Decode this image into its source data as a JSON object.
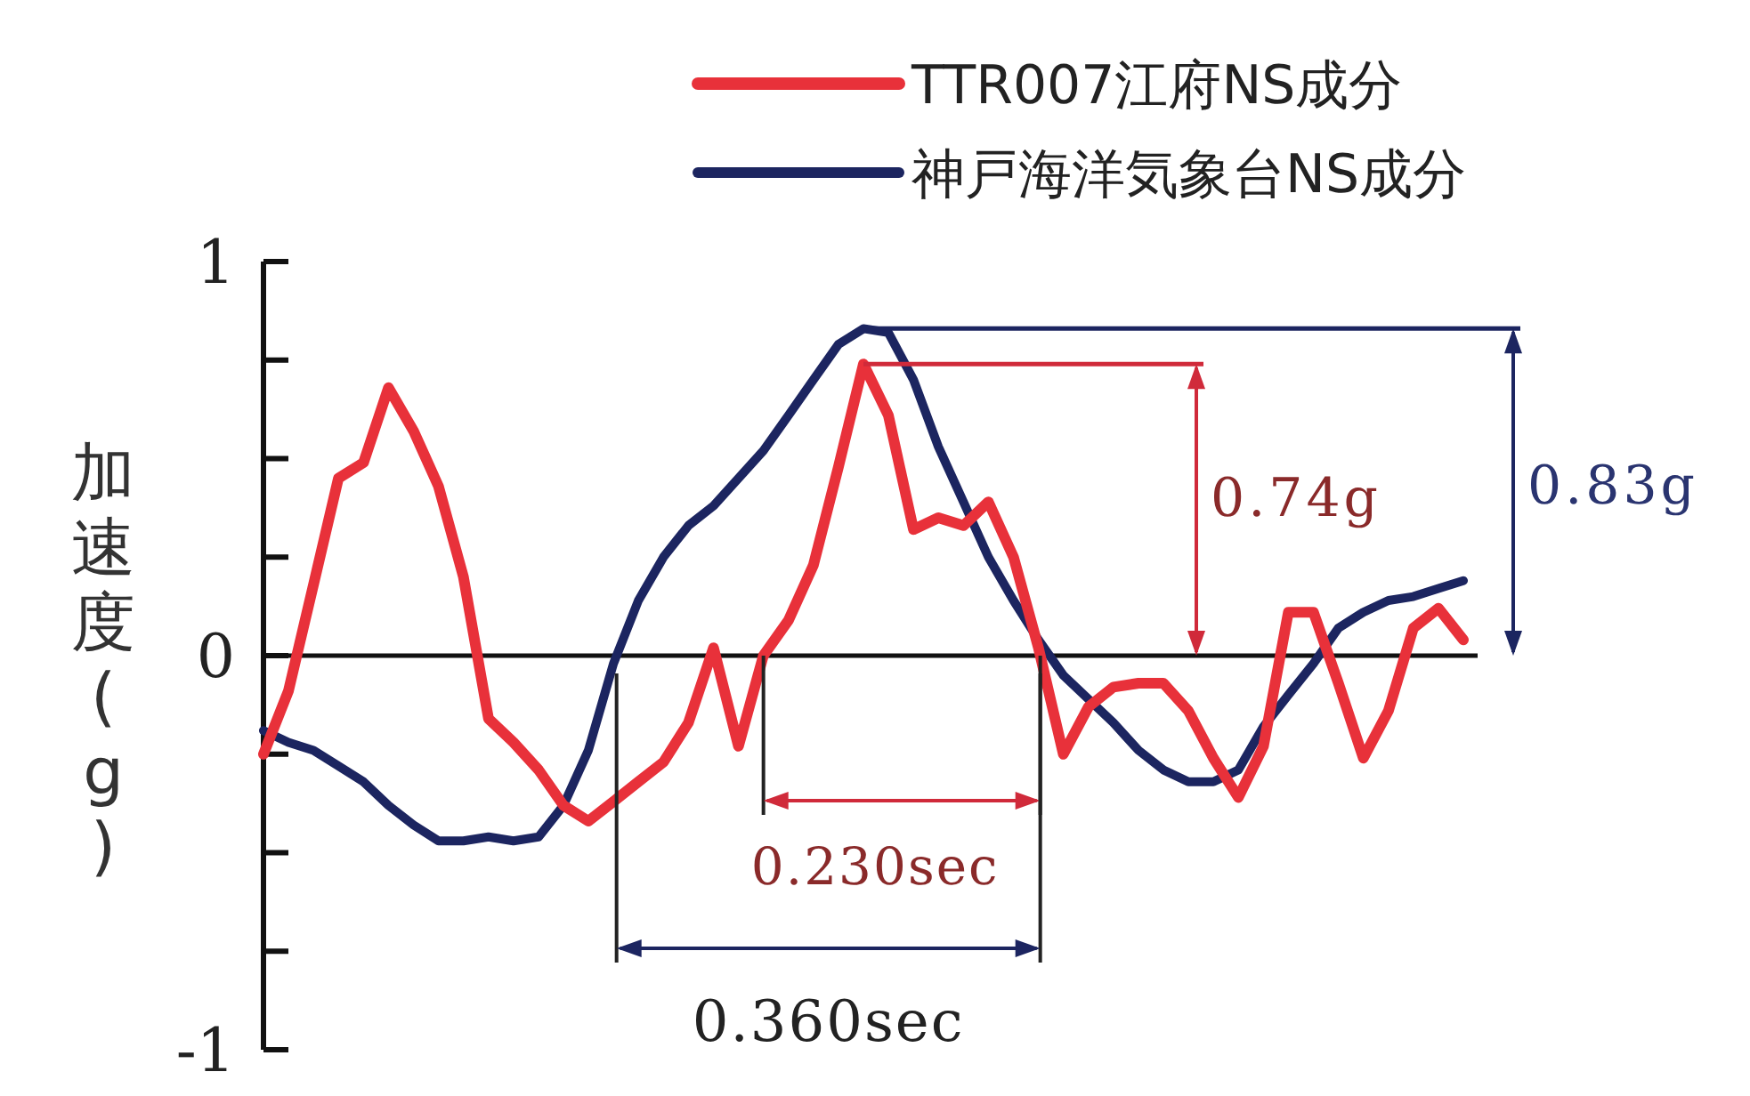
{
  "chart_data": {
    "type": "line",
    "ylabel": "加速度(g)",
    "legend": "top right",
    "marker": "none",
    "line_style": "solid",
    "ylim": [
      -1,
      1
    ],
    "yticks": [
      -1,
      {
        "value": -0.75,
        "label": null
      },
      {
        "value": -0.5,
        "label": null
      },
      {
        "value": -0.25,
        "label": null
      },
      0,
      {
        "value": 0.25,
        "label": null
      },
      {
        "value": 0.5,
        "label": null
      },
      {
        "value": 0.75,
        "label": null
      },
      1
    ],
    "categories": [
      null,
      null,
      null,
      null,
      null,
      null,
      null,
      null,
      null,
      null,
      null,
      null,
      null,
      null,
      null,
      null,
      null,
      null,
      null,
      null,
      null,
      null,
      null,
      null,
      null,
      null,
      null,
      null,
      null,
      null,
      null,
      null,
      null,
      null,
      null,
      null,
      null,
      null,
      null,
      null,
      null,
      null,
      null,
      null,
      null,
      null,
      null,
      null,
      null
    ],
    "series": [
      {
        "name": "TTR007江府NS成分",
        "color": "#e8313a",
        "values": [
          -0.25,
          -0.09,
          0.18,
          0.45,
          0.49,
          0.68,
          0.57,
          0.43,
          0.2,
          -0.16,
          -0.22,
          -0.29,
          -0.38,
          -0.42,
          -0.37,
          -0.32,
          -0.27,
          -0.17,
          0.02,
          -0.23,
          0.0,
          0.09,
          0.23,
          0.48,
          0.74,
          0.61,
          0.32,
          0.35,
          0.33,
          0.39,
          0.25,
          0.02,
          -0.25,
          -0.13,
          -0.08,
          -0.07,
          -0.07,
          -0.14,
          -0.26,
          -0.36,
          -0.23,
          0.11,
          0.11,
          -0.07,
          -0.26,
          -0.14,
          0.07,
          0.12,
          0.04
        ]
      },
      {
        "name": "神戸海洋気象台NS成分",
        "color": "#1c2560",
        "values": [
          -0.19,
          -0.22,
          -0.24,
          -0.28,
          -0.32,
          -0.38,
          -0.43,
          -0.47,
          -0.47,
          -0.46,
          -0.47,
          -0.46,
          -0.38,
          -0.24,
          -0.02,
          0.14,
          0.25,
          0.33,
          0.38,
          0.45,
          0.52,
          0.61,
          0.7,
          0.79,
          0.83,
          0.82,
          0.7,
          0.53,
          0.39,
          0.25,
          0.14,
          0.04,
          -0.05,
          -0.11,
          -0.17,
          -0.24,
          -0.29,
          -0.32,
          -0.32,
          -0.29,
          -0.18,
          -0.1,
          -0.02,
          0.07,
          0.11,
          0.14,
          0.15,
          0.17,
          0.19
        ]
      }
    ],
    "ref_lines": [
      {
        "axis": "y",
        "value": 0.74,
        "label": "0.74g",
        "color": "#d02a3a"
      },
      {
        "axis": "y",
        "value": 0.83,
        "label": "0.83g",
        "color": "#1c2560"
      }
    ],
    "annotations": [
      "0.230sec",
      "0.360sec"
    ]
  }
}
